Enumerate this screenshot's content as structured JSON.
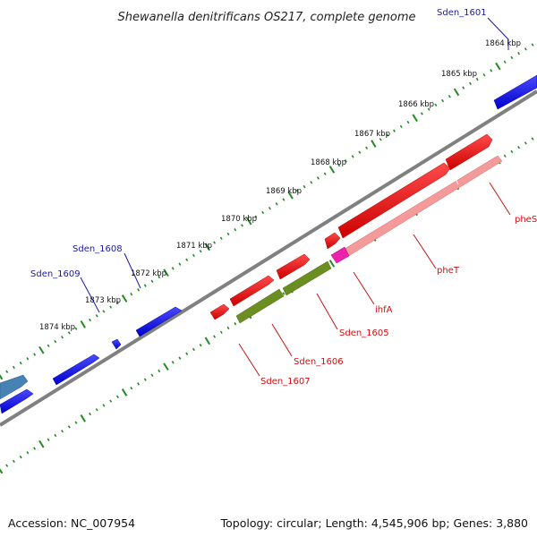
{
  "title": "Shewanella denitrificans OS217, complete genome",
  "footer": {
    "accession": "Accession: NC_007954",
    "summary": "Topology: circular; Length: 4,545,906 bp; Genes: 3,880"
  },
  "kbp_labels": [
    "1864 kbp",
    "1865 kbp",
    "1866 kbp",
    "1867 kbp",
    "1868 kbp",
    "1869 kbp",
    "1870 kbp",
    "1871 kbp",
    "1872 kbp",
    "1873 kbp",
    "1874 kbp"
  ],
  "forward_gene_labels": [
    "Sden_1601",
    "Sden_1608",
    "Sden_1609"
  ],
  "reverse_gene_labels": [
    "pheS",
    "pheT",
    "ihfA",
    "Sden_1605",
    "Sden_1606",
    "Sden_1607"
  ],
  "colors": {
    "forward_gene": "#1a1ae6",
    "reverse_gene": "#ee1111",
    "pheT_gene": "#f59a9a",
    "ihfA_gene": "#ee22aa",
    "olive_gene": "#6b8e23",
    "steelblue_gene": "#4682b4",
    "backbone": "#808080",
    "tick": "#228b22",
    "fwd_label": "#1a1aa0",
    "rev_label": "#cc1111"
  }
}
